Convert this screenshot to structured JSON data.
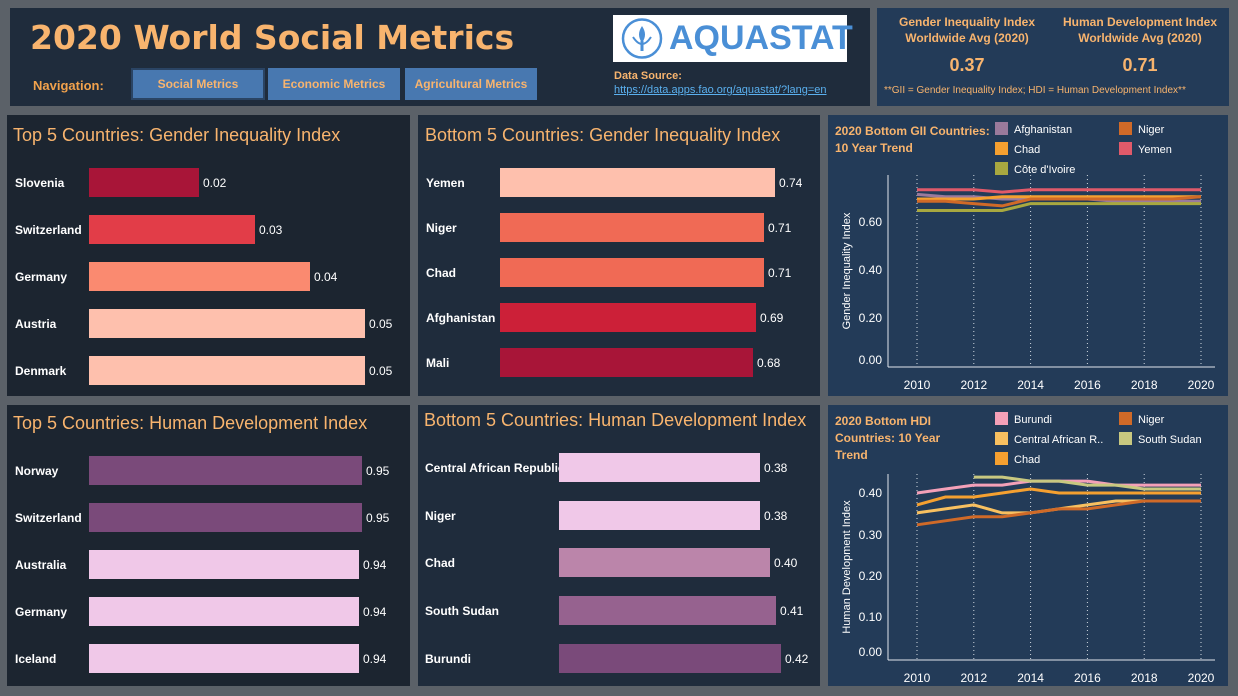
{
  "header": {
    "title": "2020 World Social Metrics",
    "nav_label": "Navigation:",
    "nav": [
      {
        "label": "Social Metrics"
      },
      {
        "label": "Economic Metrics"
      },
      {
        "label": "Agricultural Metrics"
      }
    ],
    "logo_text": "AQUASTAT",
    "source_label": "Data Source: ",
    "source_url": "https://data.apps.fao.org/aquastat/?lang=en"
  },
  "kpis": {
    "gii_head": "Gender Inequality Index Worldwide Avg (2020)",
    "gii_value": "0.37",
    "hdi_head": "Human Development Index Worldwide Avg (2020)",
    "hdi_value": "0.71",
    "note": "**GII = Gender Inequality Index; HDI = Human Development Index**"
  },
  "colors": {
    "accent": "#f8b46e",
    "panel": "#1f2c3c"
  },
  "chart_data": [
    {
      "type": "bar",
      "title": "Top 5 Countries: Gender Inequality Index",
      "categories": [
        "Slovenia",
        "Switzerland",
        "Germany",
        "Austria",
        "Denmark"
      ],
      "values": [
        0.02,
        0.03,
        0.04,
        0.05,
        0.05
      ],
      "labels": [
        "0.02",
        "0.03",
        "0.04",
        "0.05",
        "0.05"
      ],
      "colors": [
        "#a81538",
        "#e23d48",
        "#fa8a70",
        "#fec0ad",
        "#fec0ad"
      ]
    },
    {
      "type": "bar",
      "title": "Bottom 5 Countries: Gender Inequality Index",
      "categories": [
        "Yemen",
        "Niger",
        "Chad",
        "Afghanistan",
        "Mali"
      ],
      "values": [
        0.74,
        0.71,
        0.71,
        0.69,
        0.68
      ],
      "labels": [
        "0.74",
        "0.71",
        "0.71",
        "0.69",
        "0.68"
      ],
      "colors": [
        "#fec0ad",
        "#f06a55",
        "#f06a55",
        "#cc2038",
        "#a81538"
      ]
    },
    {
      "type": "bar",
      "title": "Top 5 Countries: Human Development Index",
      "categories": [
        "Norway",
        "Switzerland",
        "Australia",
        "Germany",
        "Iceland"
      ],
      "values": [
        0.95,
        0.95,
        0.94,
        0.94,
        0.94
      ],
      "labels": [
        "0.95",
        "0.95",
        "0.94",
        "0.94",
        "0.94"
      ],
      "colors": [
        "#7a4a7a",
        "#7a4a7a",
        "#f0c8e8",
        "#f0c8e8",
        "#f0c8e8"
      ]
    },
    {
      "type": "bar",
      "title": "Bottom 5 Countries: Human Development Index",
      "categories": [
        "Central African Republic",
        "Niger",
        "Chad",
        "South Sudan",
        "Burundi"
      ],
      "values": [
        0.38,
        0.38,
        0.4,
        0.41,
        0.42
      ],
      "labels": [
        "0.38",
        "0.38",
        "0.40",
        "0.41",
        "0.42"
      ],
      "colors": [
        "#f0c8e8",
        "#f0c8e8",
        "#bb85aa",
        "#96628f",
        "#7a4a7a"
      ]
    },
    {
      "type": "line",
      "title": "2020 Bottom GII Countries: 10 Year Trend",
      "ylabel": "Gender Inequality Index",
      "x": [
        2010,
        2011,
        2012,
        2013,
        2014,
        2015,
        2016,
        2017,
        2018,
        2019,
        2020
      ],
      "xticks": [
        "2010",
        "2012",
        "2014",
        "2016",
        "2018",
        "2020"
      ],
      "yticks": [
        "0.00",
        "0.20",
        "0.40",
        "0.60"
      ],
      "ylim": [
        0,
        0.8
      ],
      "series": [
        {
          "name": "Afghanistan",
          "color": "#9a7a9c",
          "values": [
            0.72,
            0.71,
            0.71,
            0.7,
            0.7,
            0.7,
            0.7,
            0.69,
            0.69,
            0.69,
            0.69
          ]
        },
        {
          "name": "Chad",
          "color": "#f5a030",
          "values": [
            0.7,
            0.7,
            0.7,
            0.71,
            0.71,
            0.71,
            0.71,
            0.71,
            0.71,
            0.71,
            0.71
          ]
        },
        {
          "name": "Côte d'Ivoire",
          "color": "#a8a840",
          "values": [
            0.65,
            0.65,
            0.65,
            0.65,
            0.68,
            0.68,
            0.68,
            0.68,
            0.68,
            0.68,
            0.68
          ]
        },
        {
          "name": "Niger",
          "color": "#d06a28",
          "values": [
            0.69,
            0.69,
            0.68,
            0.67,
            0.7,
            0.7,
            0.7,
            0.7,
            0.7,
            0.7,
            0.71
          ]
        },
        {
          "name": "Yemen",
          "color": "#e05a6a",
          "values": [
            0.74,
            0.74,
            0.74,
            0.73,
            0.74,
            0.74,
            0.74,
            0.74,
            0.74,
            0.74,
            0.74
          ]
        }
      ]
    },
    {
      "type": "line",
      "title": "2020 Bottom HDI Countries: 10 Year Trend",
      "ylabel": "Human Development Index",
      "x": [
        2010,
        2011,
        2012,
        2013,
        2014,
        2015,
        2016,
        2017,
        2018,
        2019,
        2020
      ],
      "xticks": [
        "2010",
        "2012",
        "2014",
        "2016",
        "2018",
        "2020"
      ],
      "yticks": [
        "0.00",
        "0.10",
        "0.20",
        "0.30",
        "0.40"
      ],
      "ylim": [
        0,
        0.45
      ],
      "series": [
        {
          "name": "Burundi",
          "color": "#f4a0b8",
          "values": [
            0.4,
            0.41,
            0.42,
            0.42,
            0.43,
            0.43,
            0.43,
            0.42,
            0.42,
            0.42,
            0.42
          ]
        },
        {
          "name": "Central African R..",
          "color": "#f8c060",
          "values": [
            0.35,
            0.36,
            0.37,
            0.35,
            0.35,
            0.36,
            0.37,
            0.38,
            0.38,
            0.38,
            0.38
          ]
        },
        {
          "name": "Chad",
          "color": "#f5a030",
          "values": [
            0.37,
            0.39,
            0.39,
            0.4,
            0.41,
            0.4,
            0.4,
            0.4,
            0.4,
            0.4,
            0.4
          ]
        },
        {
          "name": "Niger",
          "color": "#d06a28",
          "values": [
            0.32,
            0.33,
            0.34,
            0.34,
            0.35,
            0.36,
            0.36,
            0.37,
            0.38,
            0.38,
            0.38
          ]
        },
        {
          "name": "South Sudan",
          "color": "#c8c880",
          "values": [
            null,
            null,
            0.44,
            0.44,
            0.43,
            0.43,
            0.42,
            0.42,
            0.41,
            0.41,
            0.41
          ]
        }
      ]
    }
  ]
}
